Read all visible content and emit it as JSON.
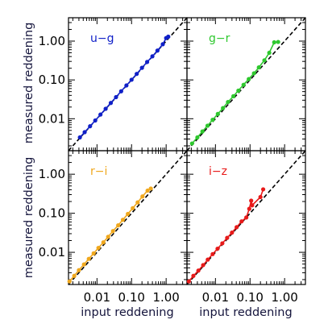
{
  "axes": {
    "x_title": "input reddening",
    "y_title": "measured reddening",
    "x_ticks": [
      {
        "value": 0.01,
        "label": "0.01"
      },
      {
        "value": 0.1,
        "label": "0.10"
      },
      {
        "value": 1.0,
        "label": "1.00"
      }
    ],
    "y_ticks": [
      {
        "value": 0.01,
        "label": "0.01"
      },
      {
        "value": 0.1,
        "label": "0.10"
      },
      {
        "value": 1.0,
        "label": "1.00"
      }
    ]
  },
  "chart_data": [
    {
      "type": "line",
      "panel": "top-left",
      "label": "u−g",
      "color": "#1020c8",
      "xscale": "log",
      "yscale": "log",
      "xlim": [
        0.0015,
        4.0
      ],
      "ylim": [
        0.0015,
        4.0
      ],
      "reference_line": "y = x (dashed)",
      "x": [
        0.0032,
        0.0044,
        0.0063,
        0.0089,
        0.0126,
        0.0178,
        0.0251,
        0.0355,
        0.05,
        0.071,
        0.1,
        0.141,
        0.2,
        0.282,
        0.4,
        0.56,
        0.8,
        1.0,
        1.15
      ],
      "y": [
        0.0033,
        0.0045,
        0.0064,
        0.009,
        0.0128,
        0.018,
        0.0255,
        0.036,
        0.051,
        0.072,
        0.101,
        0.143,
        0.205,
        0.29,
        0.405,
        0.57,
        0.83,
        1.2,
        1.3
      ]
    },
    {
      "type": "line",
      "panel": "top-right",
      "label": "g−r",
      "color": "#2ec82e",
      "xscale": "log",
      "yscale": "log",
      "xlim": [
        0.0015,
        4.0
      ],
      "ylim": [
        0.0015,
        4.0
      ],
      "reference_line": "y = x (dashed)",
      "x": [
        0.0021,
        0.003,
        0.0042,
        0.0059,
        0.0083,
        0.0117,
        0.0165,
        0.023,
        0.033,
        0.046,
        0.065,
        0.092,
        0.13,
        0.18,
        0.26,
        0.36,
        0.5,
        0.65
      ],
      "y": [
        0.0023,
        0.0033,
        0.0047,
        0.0066,
        0.0094,
        0.0133,
        0.0188,
        0.027,
        0.038,
        0.053,
        0.075,
        0.105,
        0.148,
        0.21,
        0.32,
        0.5,
        0.93,
        0.95
      ]
    },
    {
      "type": "line",
      "panel": "bottom-left",
      "label": "r−i",
      "color": "#f0a81e",
      "xscale": "log",
      "yscale": "log",
      "xlim": [
        0.0015,
        4.0
      ],
      "ylim": [
        0.0015,
        4.0
      ],
      "reference_line": "y = x (dashed)",
      "x": [
        0.0016,
        0.0022,
        0.003,
        0.0042,
        0.0058,
        0.008,
        0.011,
        0.0153,
        0.021,
        0.029,
        0.041,
        0.056,
        0.078,
        0.108,
        0.15,
        0.207,
        0.29,
        0.36
      ],
      "y": [
        0.0018,
        0.0025,
        0.0035,
        0.0049,
        0.0068,
        0.0094,
        0.013,
        0.018,
        0.025,
        0.035,
        0.049,
        0.068,
        0.096,
        0.135,
        0.19,
        0.27,
        0.38,
        0.43
      ]
    },
    {
      "type": "line",
      "panel": "bottom-right",
      "label": "i−z",
      "color": "#e81a1a",
      "xscale": "log",
      "yscale": "log",
      "xlim": [
        0.0015,
        4.0
      ],
      "ylim": [
        0.0015,
        4.0
      ],
      "reference_line": "y = x (dashed)",
      "x": [
        0.0017,
        0.0023,
        0.0032,
        0.0044,
        0.006,
        0.0083,
        0.0115,
        0.0158,
        0.0218,
        0.03,
        0.041,
        0.057,
        0.078,
        0.095,
        0.108,
        0.115,
        0.2,
        0.24
      ],
      "y": [
        0.0018,
        0.0025,
        0.0034,
        0.0047,
        0.0065,
        0.009,
        0.0124,
        0.017,
        0.0235,
        0.032,
        0.044,
        0.062,
        0.078,
        0.13,
        0.21,
        0.16,
        0.26,
        0.41
      ]
    }
  ]
}
